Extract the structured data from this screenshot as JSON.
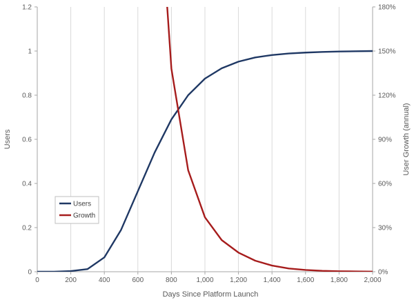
{
  "chart_data": {
    "type": "line",
    "xlabel": "Days Since Platform Launch",
    "ylabel": "Users",
    "y2label": "User Growth (annual)",
    "xlim": [
      0,
      2000
    ],
    "ylim": [
      0,
      1.2
    ],
    "y2lim": [
      0,
      1.8
    ],
    "x_ticks": [
      0,
      200,
      400,
      600,
      800,
      1000,
      1200,
      1400,
      1600,
      1800,
      2000
    ],
    "x_tick_labels": [
      "0",
      "200",
      "400",
      "600",
      "800",
      "1,000",
      "1,200",
      "1,400",
      "1,600",
      "1,800",
      "2,000"
    ],
    "y_ticks": [
      0,
      0.2,
      0.4,
      0.6,
      0.8,
      1,
      1.2
    ],
    "y_tick_labels": [
      "0",
      "0.2",
      "0.4",
      "0.6",
      "0.8",
      "1",
      "1.2"
    ],
    "y2_ticks": [
      0,
      0.3,
      0.6,
      0.9,
      1.2,
      1.5,
      1.8
    ],
    "y2_tick_labels": [
      "0%",
      "30%",
      "60%",
      "90%",
      "120%",
      "150%",
      "180%"
    ],
    "grid": "vertical",
    "legend_position": "lower-left",
    "series": [
      {
        "name": "Users",
        "axis": "left",
        "color": "#1f3864",
        "x": [
          0,
          100,
          200,
          300,
          400,
          500,
          600,
          700,
          800,
          900,
          1000,
          1100,
          1200,
          1300,
          1400,
          1500,
          1600,
          1700,
          1800,
          1900,
          2000
        ],
        "y": [
          0,
          0,
          0.003,
          0.012,
          0.065,
          0.19,
          0.365,
          0.54,
          0.69,
          0.8,
          0.875,
          0.922,
          0.952,
          0.971,
          0.982,
          0.989,
          0.993,
          0.996,
          0.998,
          0.999,
          1.0
        ]
      },
      {
        "name": "Growth",
        "axis": "right",
        "color": "#a61c1c",
        "x": [
          775,
          800,
          900,
          1000,
          1100,
          1200,
          1300,
          1400,
          1500,
          1600,
          1700,
          1800,
          1900,
          2000
        ],
        "y": [
          1.8,
          1.38,
          0.69,
          0.37,
          0.215,
          0.13,
          0.075,
          0.042,
          0.022,
          0.012,
          0.006,
          0.003,
          0.002,
          0.001
        ]
      }
    ]
  }
}
